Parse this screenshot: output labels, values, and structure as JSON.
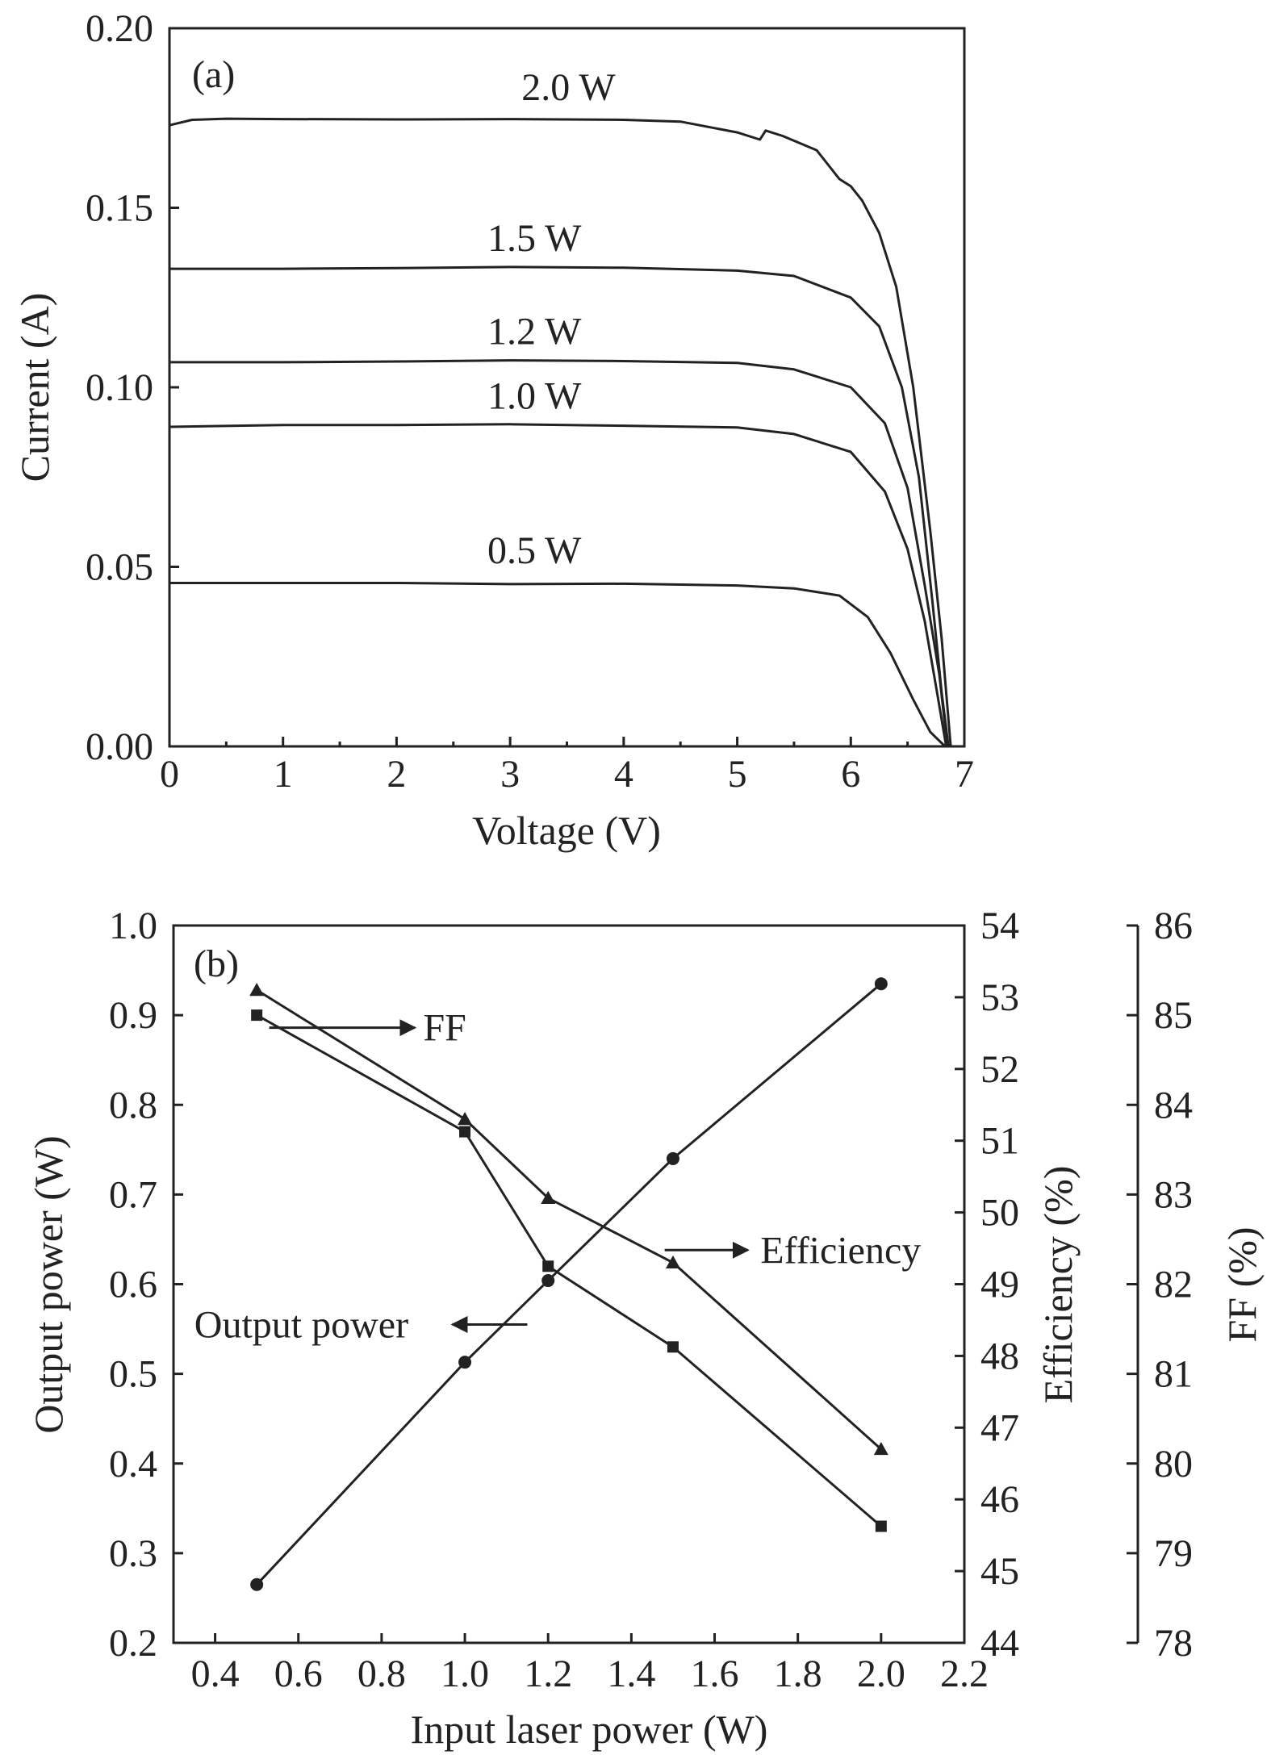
{
  "chart_data": [
    {
      "type": "line",
      "panel_label": "(a)",
      "xlabel": "Voltage (V)",
      "ylabel": "Current (A)",
      "xlim": [
        0,
        7
      ],
      "ylim": [
        0,
        0.2
      ],
      "xticks": [
        0,
        1,
        2,
        3,
        4,
        5,
        6,
        7
      ],
      "xtick_labels": [
        "0",
        "1",
        "2",
        "3",
        "4",
        "5",
        "6",
        "7"
      ],
      "yticks": [
        0,
        0.05,
        0.1,
        0.15,
        0.2
      ],
      "ytick_labels": [
        "0.00",
        "0.05",
        "0.10",
        "0.15",
        "0.20"
      ],
      "grid": false,
      "series": [
        {
          "name": "2.0 W",
          "label_at": [
            3.1,
            0.18
          ],
          "points": [
            [
              0,
              0.173
            ],
            [
              0.2,
              0.1745
            ],
            [
              0.5,
              0.1748
            ],
            [
              1.0,
              0.1747
            ],
            [
              2.0,
              0.1746
            ],
            [
              3.0,
              0.1747
            ],
            [
              4.0,
              0.1745
            ],
            [
              4.5,
              0.174
            ],
            [
              5.0,
              0.171
            ],
            [
              5.2,
              0.169
            ],
            [
              5.25,
              0.1715
            ],
            [
              5.4,
              0.17
            ],
            [
              5.7,
              0.166
            ],
            [
              5.9,
              0.158
            ],
            [
              6.0,
              0.156
            ],
            [
              6.1,
              0.152
            ],
            [
              6.25,
              0.143
            ],
            [
              6.4,
              0.128
            ],
            [
              6.55,
              0.1
            ],
            [
              6.7,
              0.06
            ],
            [
              6.8,
              0.03
            ],
            [
              6.88,
              0.0
            ]
          ]
        },
        {
          "name": "1.5 W",
          "label_at": [
            2.8,
            0.138
          ],
          "points": [
            [
              0,
              0.133
            ],
            [
              1.0,
              0.133
            ],
            [
              2.0,
              0.1332
            ],
            [
              3.0,
              0.1335
            ],
            [
              4.0,
              0.1333
            ],
            [
              5.0,
              0.1325
            ],
            [
              5.5,
              0.131
            ],
            [
              6.0,
              0.125
            ],
            [
              6.25,
              0.117
            ],
            [
              6.45,
              0.1
            ],
            [
              6.6,
              0.075
            ],
            [
              6.72,
              0.04
            ],
            [
              6.8,
              0.015
            ],
            [
              6.86,
              0.0
            ]
          ]
        },
        {
          "name": "1.2 W",
          "label_at": [
            2.8,
            0.112
          ],
          "points": [
            [
              0,
              0.107
            ],
            [
              1.0,
              0.107
            ],
            [
              2.0,
              0.1072
            ],
            [
              3.0,
              0.1075
            ],
            [
              4.0,
              0.1073
            ],
            [
              5.0,
              0.1068
            ],
            [
              5.5,
              0.105
            ],
            [
              6.0,
              0.1
            ],
            [
              6.3,
              0.09
            ],
            [
              6.5,
              0.072
            ],
            [
              6.65,
              0.045
            ],
            [
              6.78,
              0.02
            ],
            [
              6.85,
              0.0
            ]
          ]
        },
        {
          "name": "1.0 W",
          "label_at": [
            2.8,
            0.094
          ],
          "points": [
            [
              0,
              0.089
            ],
            [
              1.0,
              0.0895
            ],
            [
              2.0,
              0.0895
            ],
            [
              3.0,
              0.0897
            ],
            [
              4.0,
              0.0893
            ],
            [
              5.0,
              0.0888
            ],
            [
              5.5,
              0.087
            ],
            [
              6.0,
              0.082
            ],
            [
              6.3,
              0.071
            ],
            [
              6.5,
              0.055
            ],
            [
              6.65,
              0.035
            ],
            [
              6.76,
              0.015
            ],
            [
              6.84,
              0.0
            ]
          ]
        },
        {
          "name": "0.5 W",
          "label_at": [
            2.8,
            0.051
          ],
          "points": [
            [
              0,
              0.0455
            ],
            [
              1.0,
              0.0455
            ],
            [
              2.0,
              0.0455
            ],
            [
              3.0,
              0.0452
            ],
            [
              4.0,
              0.0453
            ],
            [
              5.0,
              0.0448
            ],
            [
              5.5,
              0.044
            ],
            [
              5.9,
              0.042
            ],
            [
              6.15,
              0.036
            ],
            [
              6.35,
              0.026
            ],
            [
              6.55,
              0.013
            ],
            [
              6.7,
              0.004
            ],
            [
              6.83,
              0.0
            ]
          ]
        }
      ]
    },
    {
      "type": "line",
      "panel_label": "(b)",
      "xlabel": "Input laser power (W)",
      "ylabel": "Output power (W)",
      "ylabel_right": "Efficiency (%)",
      "ylabel_right2": "FF (%)",
      "xlim": [
        0.3,
        2.2
      ],
      "ylim": [
        0.2,
        1.0
      ],
      "ylim_right": [
        44,
        54
      ],
      "ylim_right2": [
        78,
        86
      ],
      "xticks": [
        0.4,
        0.6,
        0.8,
        1.0,
        1.2,
        1.4,
        1.6,
        1.8,
        2.0,
        2.2
      ],
      "xtick_labels": [
        "0.4",
        "0.6",
        "0.8",
        "1.0",
        "1.2",
        "1.4",
        "1.6",
        "1.8",
        "2.0",
        "2.2"
      ],
      "yticks": [
        0.2,
        0.3,
        0.4,
        0.5,
        0.6,
        0.7,
        0.8,
        0.9,
        1.0
      ],
      "ytick_labels": [
        "0.2",
        "0.3",
        "0.4",
        "0.5",
        "0.6",
        "0.7",
        "0.8",
        "0.9",
        "1.0"
      ],
      "yticks_right": [
        44,
        45,
        46,
        47,
        48,
        49,
        50,
        51,
        52,
        53,
        54
      ],
      "ytick_labels_right": [
        "44",
        "45",
        "46",
        "47",
        "48",
        "49",
        "50",
        "51",
        "52",
        "53",
        "54"
      ],
      "yticks_right2": [
        78,
        79,
        80,
        81,
        82,
        83,
        84,
        85,
        86
      ],
      "ytick_labels_right2": [
        "78",
        "79",
        "80",
        "81",
        "82",
        "83",
        "84",
        "85",
        "86"
      ],
      "grid": false,
      "x": [
        0.5,
        1.0,
        1.2,
        1.5,
        2.0
      ],
      "series": [
        {
          "name": "Output power",
          "axis": "left",
          "marker": "circle",
          "values": [
            0.265,
            0.513,
            0.604,
            0.74,
            0.935
          ]
        },
        {
          "name": "Efficiency",
          "axis": "right",
          "marker": "triangle",
          "values": [
            53.1,
            51.3,
            50.2,
            49.3,
            46.7
          ]
        },
        {
          "name": "FF",
          "axis": "right2",
          "marker": "square",
          "values": [
            85.0,
            83.7,
            82.2,
            81.3,
            79.3
          ]
        }
      ],
      "annotations": [
        {
          "text": "FF",
          "arrow_from": [
            0.53,
            0.886
          ],
          "arrow_to": [
            0.88,
            0.886
          ],
          "text_at": [
            0.9,
            0.886
          ]
        },
        {
          "text": "Efficiency",
          "arrow_from": [
            1.48,
            0.638
          ],
          "arrow_to": [
            1.68,
            0.638
          ],
          "text_at": [
            1.71,
            0.638
          ]
        },
        {
          "text": "Output power",
          "arrow_from": [
            1.15,
            0.555
          ],
          "arrow_to": [
            0.97,
            0.555
          ],
          "text_at": [
            0.35,
            0.555
          ]
        }
      ]
    }
  ]
}
